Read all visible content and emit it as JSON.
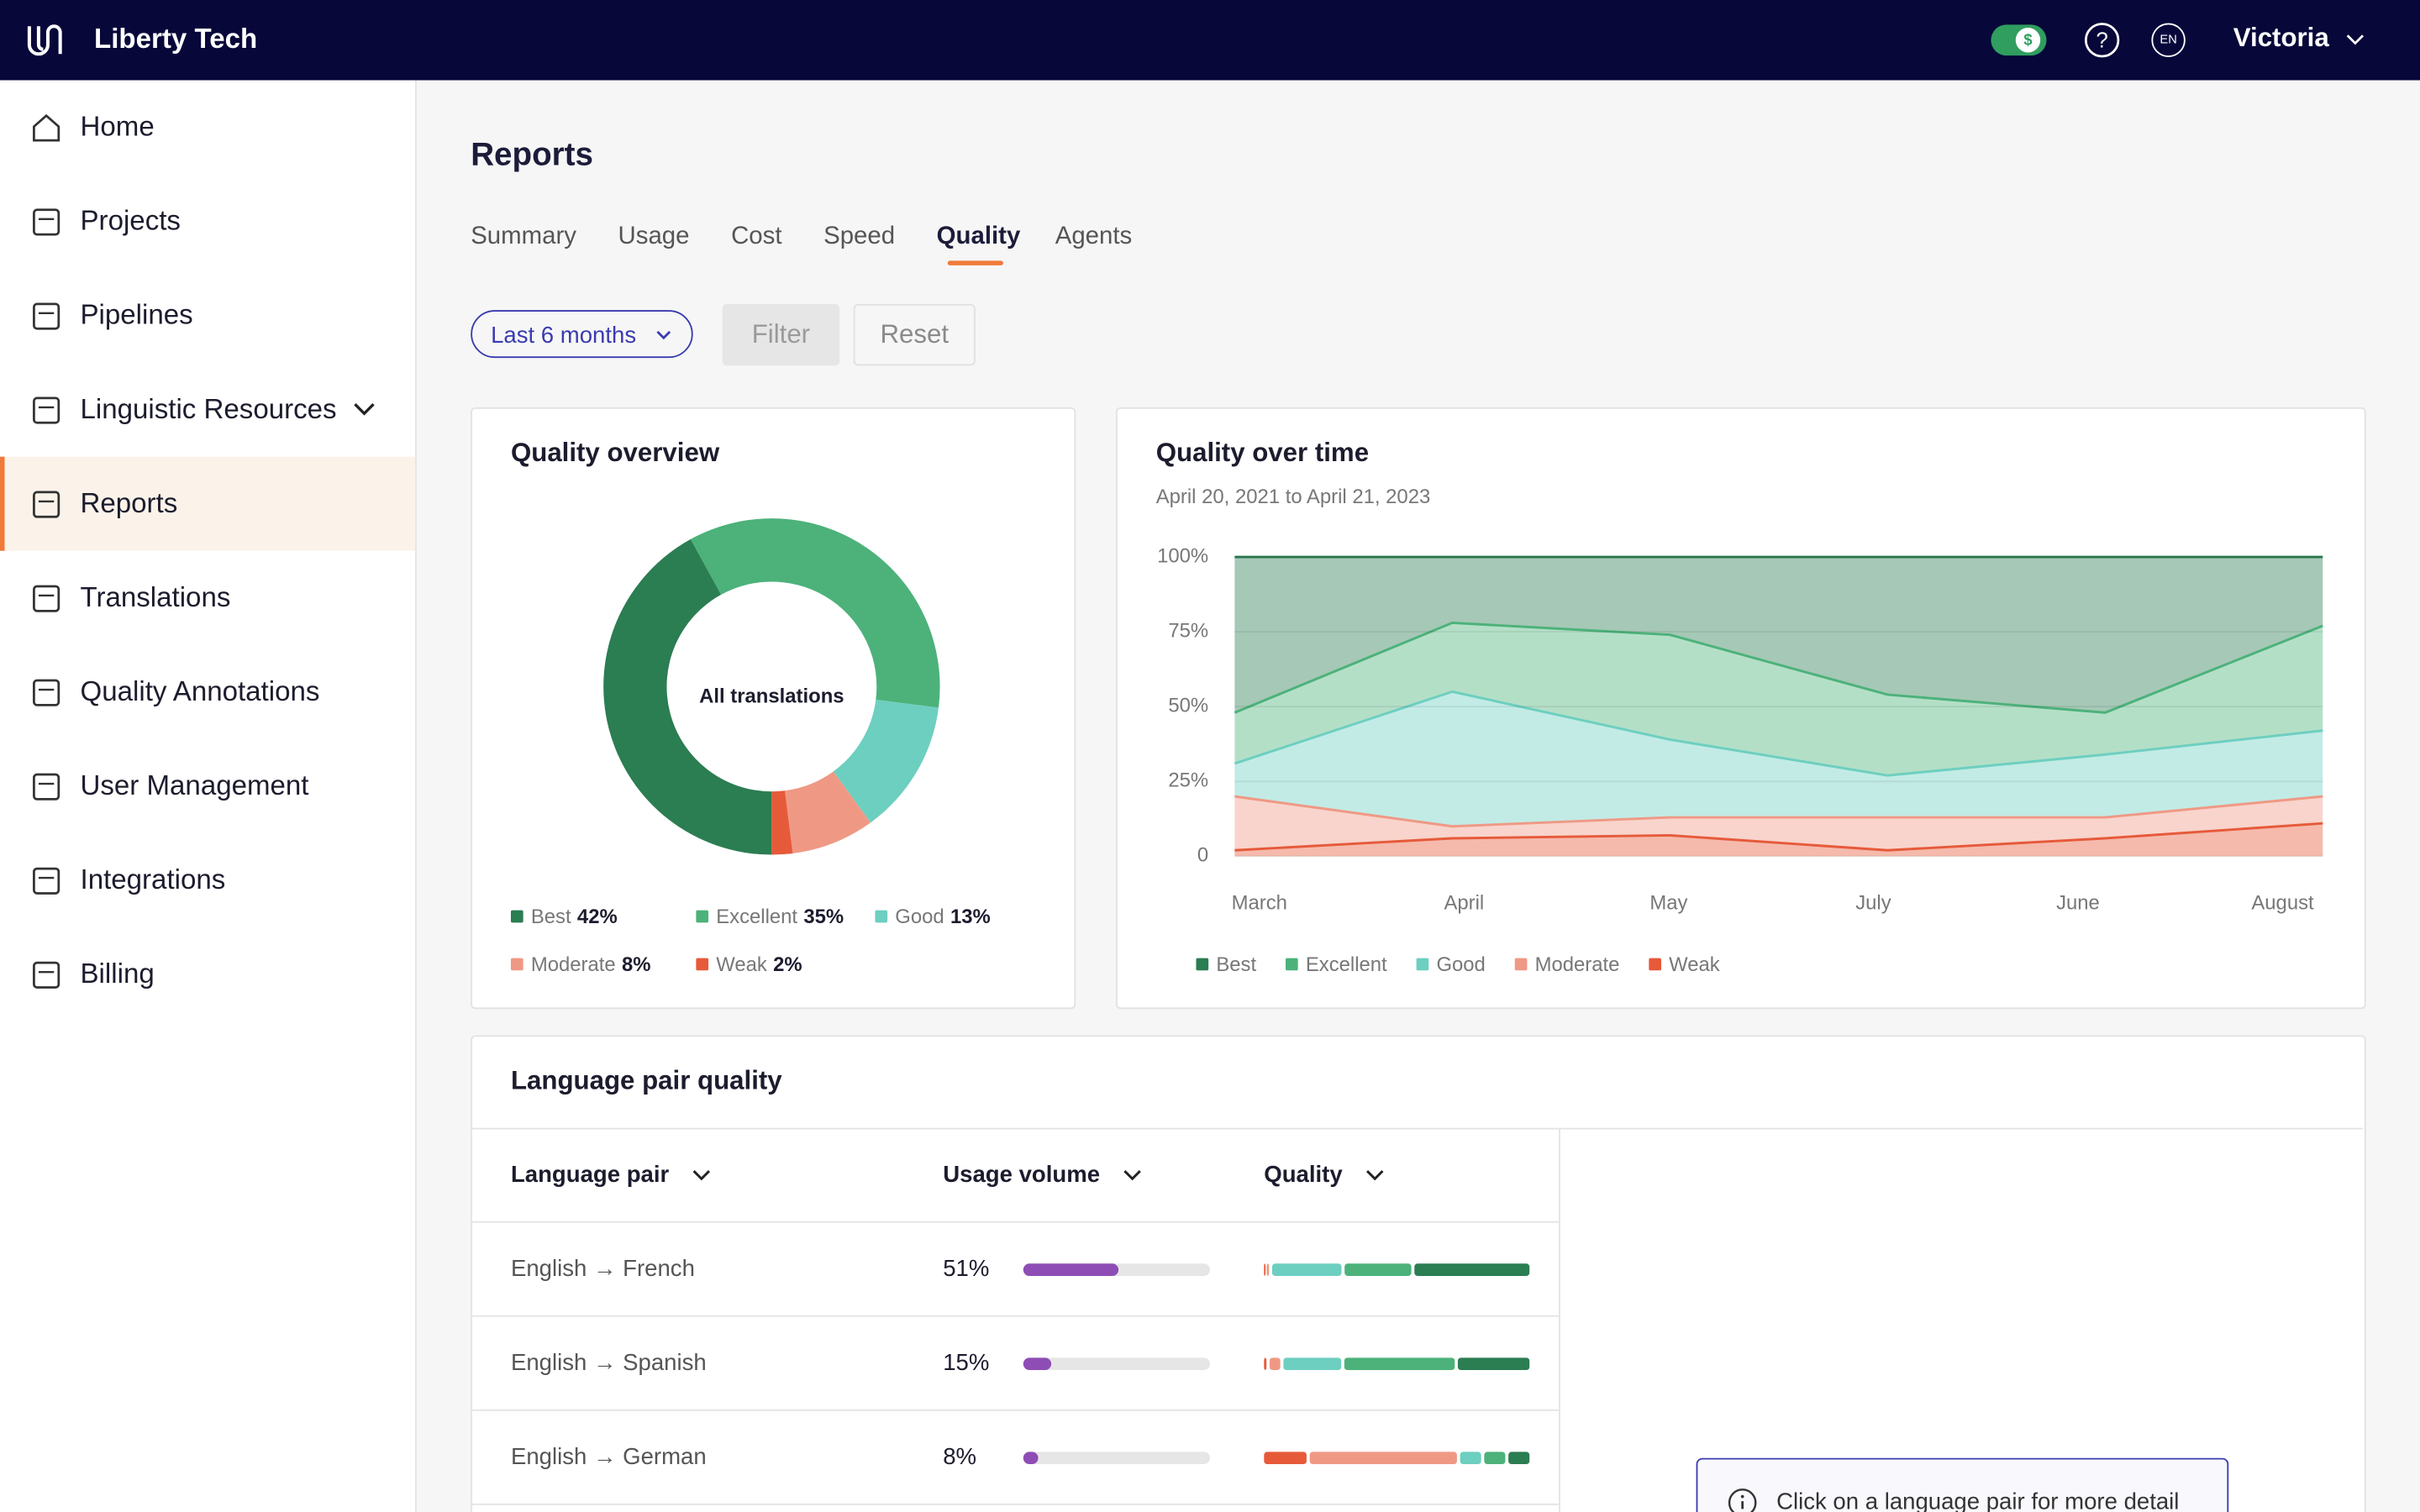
{
  "header": {
    "brand": "Liberty Tech",
    "language": "EN",
    "user": "Victoria"
  },
  "sidebar": {
    "items": [
      {
        "label": "Home"
      },
      {
        "label": "Projects"
      },
      {
        "label": "Pipelines"
      },
      {
        "label": "Linguistic Resources",
        "expandable": true
      },
      {
        "label": "Reports"
      },
      {
        "label": "Translations"
      },
      {
        "label": "Quality Annotations"
      },
      {
        "label": "User Management"
      },
      {
        "label": "Integrations"
      },
      {
        "label": "Billing"
      }
    ],
    "active": 4
  },
  "page": {
    "title": "Reports",
    "tabs": [
      "Summary",
      "Usage",
      "Cost",
      "Speed",
      "Quality",
      "Agents"
    ],
    "active_tab": 4,
    "period": "Last 6 months",
    "filter": "Filter",
    "reset": "Reset"
  },
  "quality_overview": {
    "title": "Quality overview",
    "center_label": "All translations",
    "chart_data": {
      "type": "donut",
      "categories": [
        "Best",
        "Excellent",
        "Good",
        "Moderate",
        "Weak"
      ],
      "values": [
        42,
        35,
        13,
        8,
        2
      ],
      "value_labels": [
        "42%",
        "35%",
        "13%",
        "8%",
        "2%"
      ],
      "colors": [
        "#2b7d52",
        "#4cb27a",
        "#6dcfc0",
        "#ef9985",
        "#e65a3a"
      ]
    }
  },
  "quality_over_time": {
    "title": "Quality over time",
    "subtitle": "April 20, 2021 to April 21, 2023",
    "chart_data": {
      "type": "stacked-area",
      "categories": [
        "March",
        "April",
        "May",
        "July",
        "June",
        "August"
      ],
      "series": [
        {
          "name": "Best",
          "color": "#2b7d52",
          "values": [
            52,
            22,
            26,
            46,
            52,
            23
          ]
        },
        {
          "name": "Excellent",
          "color": "#4cb27a",
          "values": [
            17,
            23,
            35,
            27,
            14,
            35
          ]
        },
        {
          "name": "Good",
          "color": "#6dcfc0",
          "values": [
            11,
            45,
            26,
            14,
            21,
            22
          ]
        },
        {
          "name": "Moderate",
          "color": "#ef9985",
          "values": [
            18,
            4,
            6,
            11,
            7,
            9
          ]
        },
        {
          "name": "Weak",
          "color": "#e65a3a",
          "values": [
            2,
            6,
            7,
            2,
            6,
            11
          ]
        }
      ],
      "ylim": [
        0,
        100
      ],
      "yticks": [
        0,
        {
          "value": 25,
          "label": "25%"
        },
        {
          "value": 50,
          "label": "50%"
        },
        {
          "value": 75,
          "label": "75%"
        },
        {
          "value": 100,
          "label": "100%"
        }
      ],
      "grid": true
    }
  },
  "language_pair_quality": {
    "title": "Language pair quality",
    "columns": [
      "Language pair",
      "Usage volume",
      "Quality"
    ],
    "usage_color": "#8e4db5",
    "quality_colors": [
      "#e65a3a",
      "#ef9985",
      "#6dcfc0",
      "#4cb27a",
      "#2b7d52"
    ],
    "rows": [
      {
        "pair": "English → French",
        "usage": 51,
        "usage_label": "51%",
        "quality": [
          1,
          2,
          27,
          26,
          44
        ]
      },
      {
        "pair": "English → Spanish",
        "usage": 15,
        "usage_label": "15%",
        "quality": [
          2,
          5,
          22,
          41,
          27
        ]
      },
      {
        "pair": "English → German",
        "usage": 8,
        "usage_label": "8%",
        "quality": [
          17,
          56,
          9,
          9,
          9
        ]
      }
    ],
    "hint": "Click on a language pair for more detail"
  }
}
